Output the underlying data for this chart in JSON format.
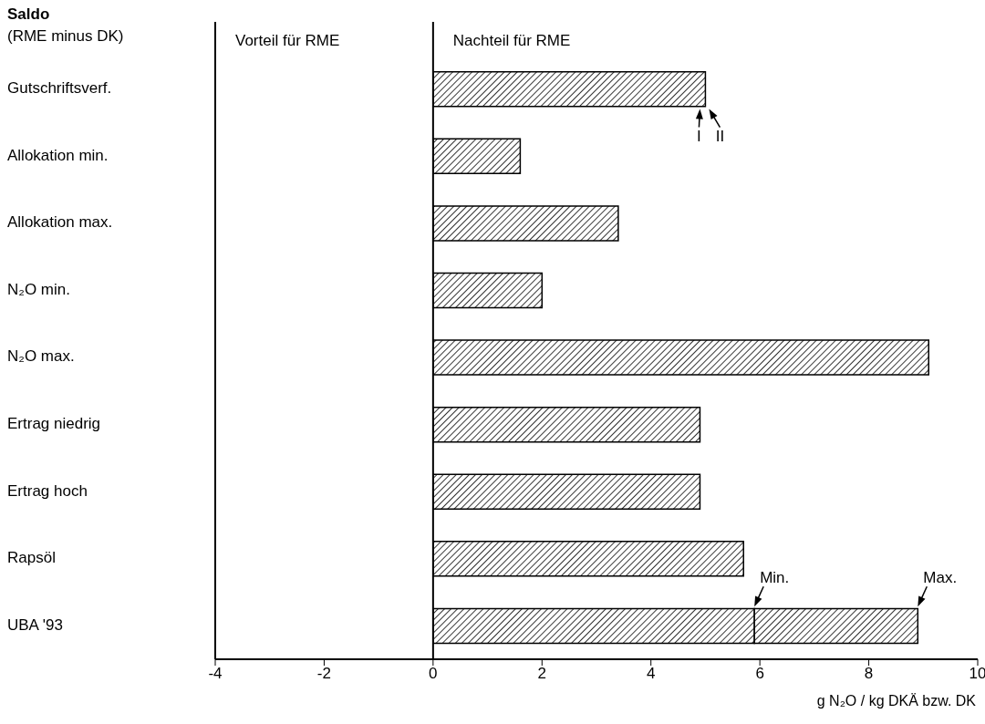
{
  "chart_data": {
    "type": "bar",
    "orientation": "horizontal",
    "stacked": true,
    "title": "Saldo",
    "subtitle": "(RME minus DK)",
    "xlabel": "g N₂O / kg DKÄ bzw. DK",
    "categories": [
      "Gutschriftsverf.",
      "Allokation min.",
      "Allokation max.",
      "N₂O min.",
      "N₂O max.",
      "Ertrag niedrig",
      "Ertrag hoch",
      "Rapsöl",
      "UBA '93"
    ],
    "series": [
      {
        "color": "#000000",
        "values": [
          5.0,
          1.6,
          3.4,
          2.0,
          9.1,
          4.9,
          4.9,
          5.7,
          5.9
        ]
      },
      {
        "color": "#000000",
        "values": [
          null,
          null,
          null,
          null,
          null,
          null,
          null,
          null,
          3.0
        ]
      }
    ],
    "xlim": [
      -4,
      10
    ],
    "xticks": [
      -4,
      -2,
      0,
      2,
      4,
      6,
      8,
      10
    ],
    "ref_lines": [
      {
        "axis": "x",
        "value": 0
      }
    ],
    "annotations": [
      "Vorteil für RME",
      "Nachteil für RME",
      {
        "text": "I",
        "x": 5.0,
        "y": "Gutschriftsverf."
      },
      {
        "text": "II",
        "x": 5.0,
        "y": "Gutschriftsverf."
      },
      {
        "text": "Min.",
        "x": 5.9,
        "y": "UBA '93"
      },
      {
        "text": "Max.",
        "x": 8.9,
        "y": "UBA '93"
      }
    ],
    "grid": false
  }
}
